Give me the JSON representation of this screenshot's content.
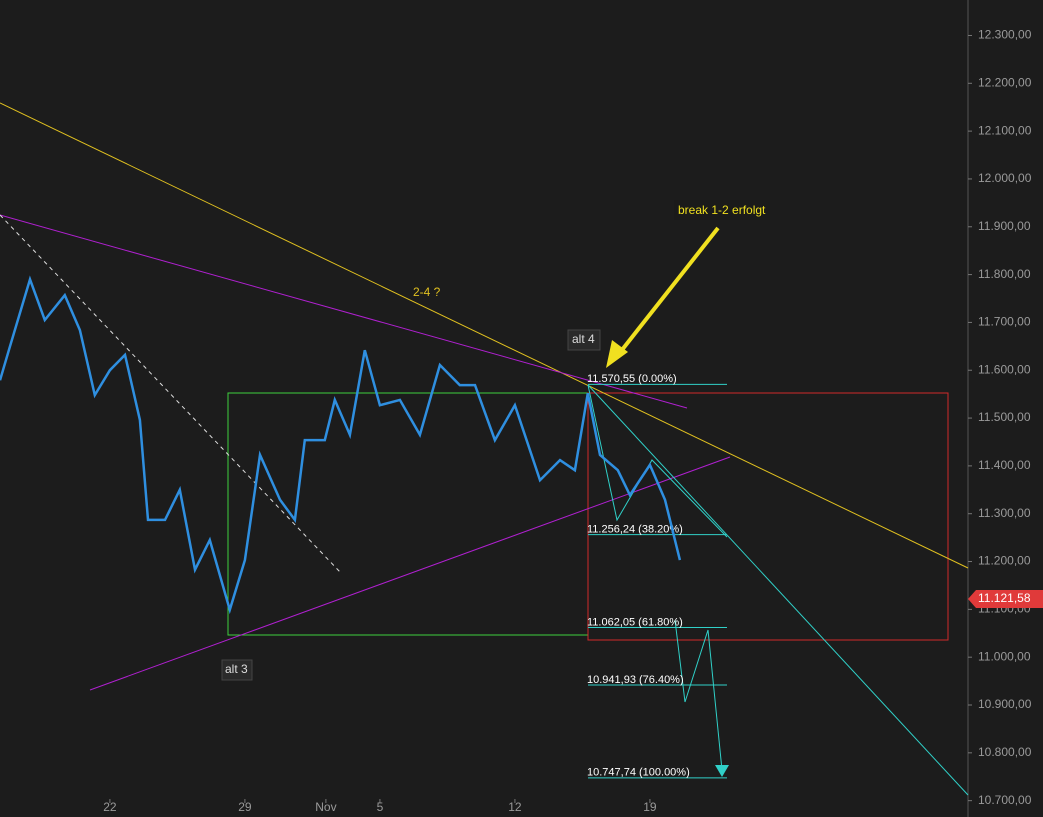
{
  "chart_data": {
    "type": "line",
    "color": "#2f8fe0",
    "x": [
      -4.07,
      -3.7,
      -2.96,
      -2.41,
      -1.67,
      -1.11,
      -0.56,
      0,
      0.56,
      1.11,
      1.41,
      2.04,
      2.59,
      3.15,
      3.7,
      4.44,
      5,
      5.56,
      6.3,
      6.85,
      7.22,
      7.96,
      8.33,
      8.89,
      9.44,
      10,
      10.74,
      11.48,
      12.22,
      12.96,
      13.52,
      14.26,
      15,
      15.93,
      16.67,
      17.22,
      17.7,
      18.15,
      18.81,
      19.26,
      20,
      20.56,
      21.11
    ],
    "values": [
      11579,
      11650,
      11790,
      11705,
      11757,
      11684,
      11548,
      11600,
      11632,
      11496,
      11287,
      11287,
      11350,
      11183,
      11245,
      11099,
      11203,
      11423,
      11329,
      11287,
      11454,
      11454,
      11538,
      11465,
      11642,
      11527,
      11538,
      11465,
      11611,
      11569,
      11569,
      11454,
      11527,
      11370,
      11412,
      11391,
      11552,
      11423,
      11391,
      11339,
      11402,
      11329,
      11203
    ],
    "xlim": [
      -4.07,
      31.78
    ],
    "ylim": [
      10670,
      12370
    ],
    "xticks": [
      {
        "value": 0,
        "label": "22"
      },
      {
        "value": 5,
        "label": "29"
      },
      {
        "value": 8,
        "label": "Nov"
      },
      {
        "value": 10,
        "label": "5"
      },
      {
        "value": 15,
        "label": "12"
      },
      {
        "value": 20,
        "label": "19"
      }
    ],
    "yticks": [
      {
        "value": 10700,
        "label": "10.700,00"
      },
      {
        "value": 10800,
        "label": "10.800,00"
      },
      {
        "value": 10900,
        "label": "10.900,00"
      },
      {
        "value": 11000,
        "label": "11.000,00"
      },
      {
        "value": 11100,
        "label": "11.100,00"
      },
      {
        "value": 11200,
        "label": "11.200,00"
      },
      {
        "value": 11300,
        "label": "11.300,00"
      },
      {
        "value": 11400,
        "label": "11.400,00"
      },
      {
        "value": 11500,
        "label": "11.500,00"
      },
      {
        "value": 11600,
        "label": "11.600,00"
      },
      {
        "value": 11700,
        "label": "11.700,00"
      },
      {
        "value": 11800,
        "label": "11.800,00"
      },
      {
        "value": 11900,
        "label": "11.900,00"
      },
      {
        "value": 12000,
        "label": "12.000,00"
      },
      {
        "value": 12100,
        "label": "12.100,00"
      },
      {
        "value": 12200,
        "label": "12.200,00"
      },
      {
        "value": 12300,
        "label": "12.300,00"
      }
    ],
    "fib_levels": [
      {
        "value": 11570.55,
        "label": "11.570,55 (0.00%)"
      },
      {
        "value": 11256.24,
        "label": "11.256,24 (38.20%)"
      },
      {
        "value": 11062.05,
        "label": "11.062,05 (61.80%)"
      },
      {
        "value": 10941.93,
        "label": "10.941,93 (76.40%)"
      },
      {
        "value": 10747.74,
        "label": "10.747,74 (100.00%)"
      }
    ],
    "last_price": {
      "value": 11121.58,
      "label": "11.121,58"
    },
    "annotations": [
      "break 1-2 erfolgt",
      "2-4 ?",
      "alt 4",
      "alt 3"
    ]
  }
}
